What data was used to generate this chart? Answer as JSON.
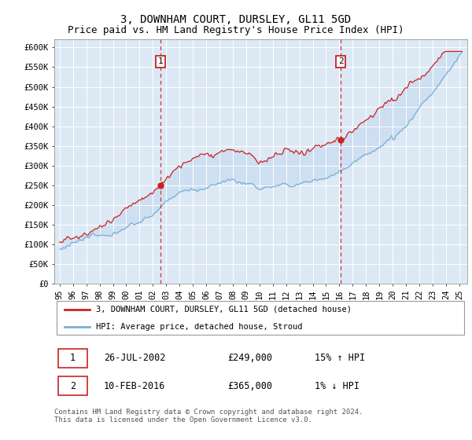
{
  "title": "3, DOWNHAM COURT, DURSLEY, GL11 5GD",
  "subtitle": "Price paid vs. HM Land Registry's House Price Index (HPI)",
  "ylim": [
    0,
    620000
  ],
  "yticks": [
    0,
    50000,
    100000,
    150000,
    200000,
    250000,
    300000,
    350000,
    400000,
    450000,
    500000,
    550000,
    600000
  ],
  "ytick_labels": [
    "£0",
    "£50K",
    "£100K",
    "£150K",
    "£200K",
    "£250K",
    "£300K",
    "£350K",
    "£400K",
    "£450K",
    "£500K",
    "£550K",
    "£600K"
  ],
  "hpi_color": "#7bafd4",
  "price_color": "#cc2222",
  "fill_color": "#c8dcf0",
  "marker1_date_x": 2002.57,
  "marker1_y": 249000,
  "marker2_date_x": 2016.11,
  "marker2_y": 365000,
  "legend_line1": "3, DOWNHAM COURT, DURSLEY, GL11 5GD (detached house)",
  "legend_line2": "HPI: Average price, detached house, Stroud",
  "table_row1_date": "26-JUL-2002",
  "table_row1_price": "£249,000",
  "table_row1_hpi": "15% ↑ HPI",
  "table_row2_date": "10-FEB-2016",
  "table_row2_price": "£365,000",
  "table_row2_hpi": "1% ↓ HPI",
  "footnote": "Contains HM Land Registry data © Crown copyright and database right 2024.\nThis data is licensed under the Open Government Licence v3.0.",
  "title_fontsize": 10,
  "subtitle_fontsize": 9,
  "xlim_left": 1994.6,
  "xlim_right": 2025.6
}
